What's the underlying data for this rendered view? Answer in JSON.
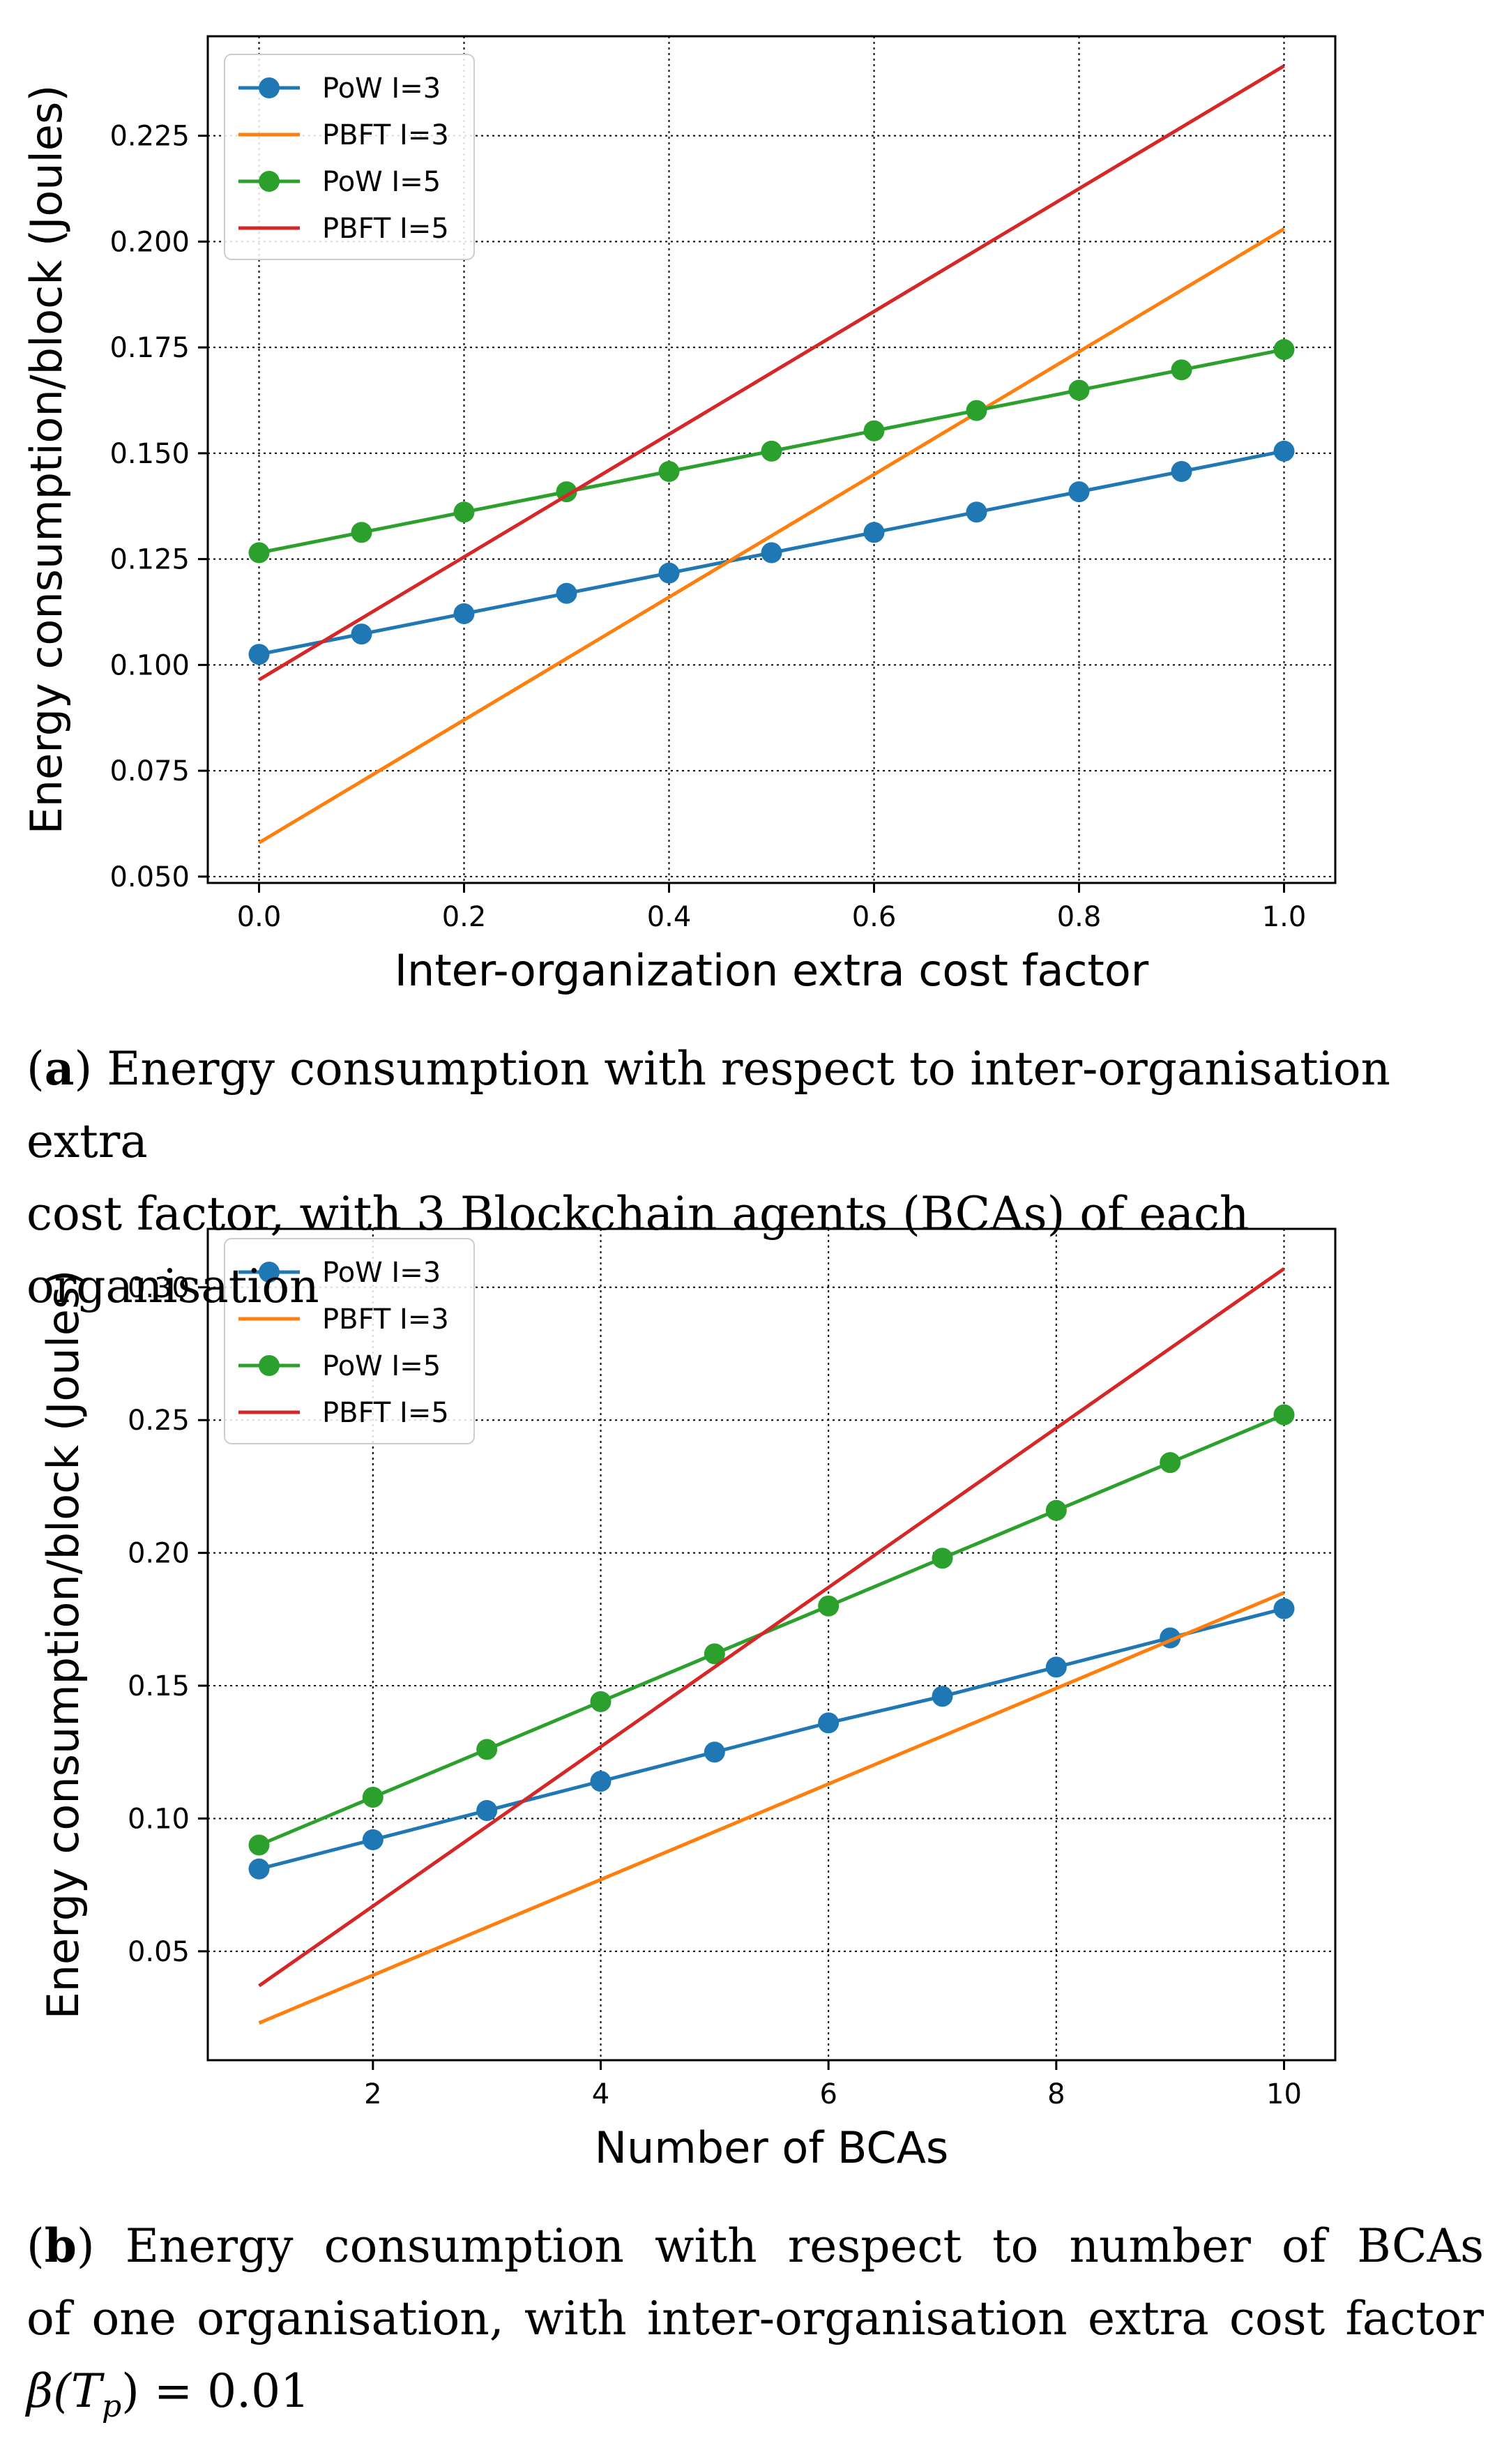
{
  "figure": {
    "charts": [
      {
        "id": "a",
        "caption_letter": "a",
        "caption_line1": ") Energy consumption with respect to inter-organisation extra",
        "caption_line2": "cost factor, with 3 Blockchain agents (BCAs) of each organisation"
      },
      {
        "id": "b",
        "caption_letter": "b",
        "caption_line1": ") Energy consumption with respect to number of BCAs",
        "caption_line2": "of one organisation, with inter-organisation extra cost factor",
        "caption_line3": "β(T",
        "caption_line3_sub": "p",
        "caption_line3_rest": ") = 0.01"
      }
    ]
  },
  "chart_data": [
    {
      "type": "line",
      "title": "",
      "xlabel": "Inter-organization extra cost factor",
      "ylabel": "Energy consumption/block (Joules)",
      "xlim": [
        -0.05,
        1.05
      ],
      "ylim": [
        0.0485,
        0.2485
      ],
      "xticks": [
        0.0,
        0.2,
        0.4,
        0.6,
        0.8,
        1.0
      ],
      "xtick_labels": [
        "0.0",
        "0.2",
        "0.4",
        "0.6",
        "0.8",
        "1.0"
      ],
      "yticks": [
        0.05,
        0.075,
        0.1,
        0.125,
        0.15,
        0.175,
        0.2,
        0.225
      ],
      "ytick_labels": [
        "0.050",
        "0.075",
        "0.100",
        "0.125",
        "0.150",
        "0.175",
        "0.200",
        "0.225"
      ],
      "grid": true,
      "legend": "top-left",
      "x": [
        0.0,
        0.1,
        0.2,
        0.3,
        0.4,
        0.5,
        0.6,
        0.7,
        0.8,
        0.9,
        1.0
      ],
      "series": [
        {
          "name": "PoW I=3",
          "color": "#1f77b4",
          "marker": true,
          "values": [
            0.1025,
            0.1073,
            0.1121,
            0.1169,
            0.1217,
            0.1265,
            0.1313,
            0.1361,
            0.1409,
            0.1457,
            0.1505
          ]
        },
        {
          "name": "PBFT I=3",
          "color": "#ff7f0e",
          "marker": false,
          "values": [
            0.058,
            0.0725,
            0.087,
            0.1015,
            0.116,
            0.1305,
            0.145,
            0.1595,
            0.174,
            0.1885,
            0.203
          ]
        },
        {
          "name": "PoW I=5",
          "color": "#2ca02c",
          "marker": true,
          "values": [
            0.1265,
            0.1313,
            0.1361,
            0.1409,
            0.1457,
            0.1505,
            0.1553,
            0.1601,
            0.1649,
            0.1697,
            0.1745
          ]
        },
        {
          "name": "PBFT I=5",
          "color": "#d62728",
          "marker": false,
          "values": [
            0.0965,
            0.111,
            0.1255,
            0.14,
            0.1545,
            0.169,
            0.1835,
            0.198,
            0.2125,
            0.227,
            0.2415
          ]
        }
      ]
    },
    {
      "type": "line",
      "title": "",
      "xlabel": "Number of BCAs",
      "ylabel": "Energy consumption/block (Joules)",
      "xlim": [
        0.55,
        10.45
      ],
      "ylim": [
        0.009,
        0.322
      ],
      "xticks": [
        2,
        4,
        6,
        8,
        10
      ],
      "xtick_labels": [
        "2",
        "4",
        "6",
        "8",
        "10"
      ],
      "yticks": [
        0.05,
        0.1,
        0.15,
        0.2,
        0.25,
        0.3
      ],
      "ytick_labels": [
        "0.05",
        "0.10",
        "0.15",
        "0.20",
        "0.25",
        "0.30"
      ],
      "grid": true,
      "legend": "top-left",
      "x": [
        1,
        2,
        3,
        4,
        5,
        6,
        7,
        8,
        9,
        10
      ],
      "series": [
        {
          "name": "PoW I=3",
          "color": "#1f77b4",
          "marker": true,
          "values": [
            0.081,
            0.092,
            0.103,
            0.114,
            0.125,
            0.136,
            0.146,
            0.157,
            0.168,
            0.179
          ]
        },
        {
          "name": "PBFT I=3",
          "color": "#ff7f0e",
          "marker": false,
          "values": [
            0.023,
            0.041,
            0.059,
            0.077,
            0.095,
            0.113,
            0.131,
            0.149,
            0.167,
            0.185
          ]
        },
        {
          "name": "PoW I=5",
          "color": "#2ca02c",
          "marker": true,
          "values": [
            0.09,
            0.108,
            0.126,
            0.144,
            0.162,
            0.18,
            0.198,
            0.216,
            0.234,
            0.252
          ]
        },
        {
          "name": "PBFT I=5",
          "color": "#d62728",
          "marker": false,
          "values": [
            0.037,
            0.067,
            0.097,
            0.127,
            0.157,
            0.187,
            0.217,
            0.247,
            0.277,
            0.307
          ]
        }
      ]
    }
  ]
}
